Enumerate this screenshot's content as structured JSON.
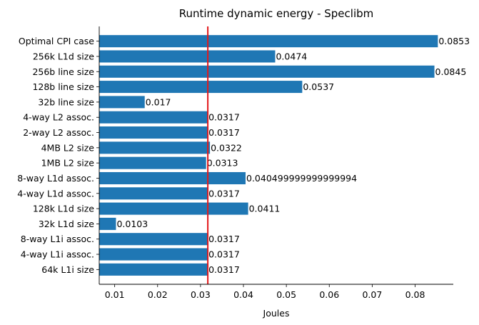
{
  "chart_data": {
    "type": "bar",
    "orientation": "horizontal",
    "title": "Runtime dynamic energy - Speclibm",
    "xlabel": "Joules",
    "ylabel": "",
    "xlim": [
      0.0064,
      0.0889
    ],
    "xticks": [
      0.01,
      0.02,
      0.03,
      0.04,
      0.05,
      0.06,
      0.07,
      0.08
    ],
    "xtick_labels": [
      "0.01",
      "0.02",
      "0.03",
      "0.04",
      "0.05",
      "0.06",
      "0.07",
      "0.08"
    ],
    "bar_color": "#1f77b4",
    "reference_line": {
      "value": 0.0317,
      "color": "#e31a1c"
    },
    "grid": false,
    "categories": [
      "Optimal CPI case",
      "256k L1d size",
      "256b line size",
      "128b line size",
      "32b line size",
      "4-way L2 assoc.",
      "2-way L2 assoc.",
      "4MB L2 size",
      "1MB L2 size",
      "8-way L1d assoc.",
      "4-way L1d assoc.",
      "128k L1d size",
      "32k L1d size",
      "8-way L1i assoc.",
      "4-way L1i assoc.",
      "64k L1i size"
    ],
    "values": [
      0.0853,
      0.0474,
      0.0845,
      0.0537,
      0.017,
      0.0317,
      0.0317,
      0.0322,
      0.0313,
      0.040499999999999994,
      0.0317,
      0.0411,
      0.0103,
      0.0317,
      0.0317,
      0.0317
    ],
    "value_labels": [
      "0.0853",
      "0.0474",
      "0.0845",
      "0.0537",
      "0.017",
      "0.0317",
      "0.0317",
      "0.0322",
      "0.0313",
      "0.040499999999999994",
      "0.0317",
      "0.0411",
      "0.0103",
      "0.0317",
      "0.0317",
      "0.0317"
    ]
  }
}
